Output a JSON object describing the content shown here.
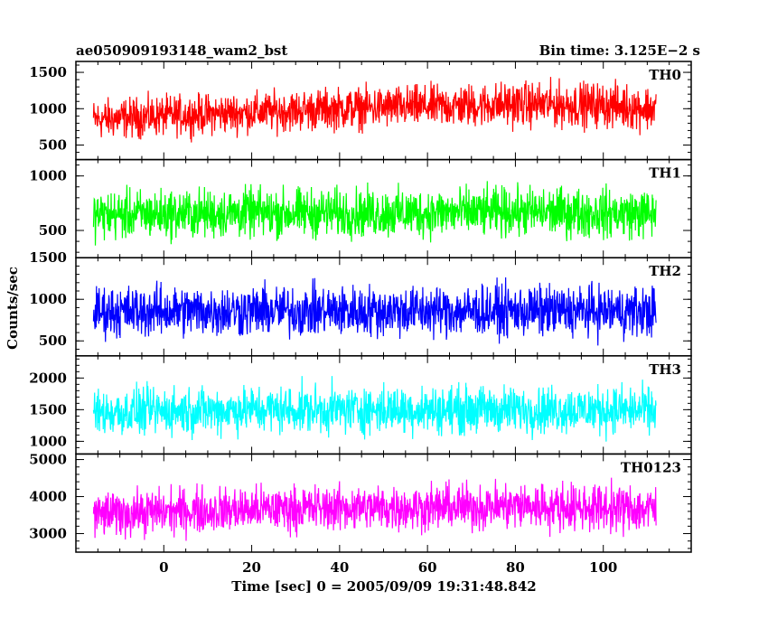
{
  "header": {
    "left_title": "ae050909193148_wam2_bst",
    "right_title": "Bin time: 3.125E−2 s"
  },
  "chart_data": {
    "type": "line",
    "title": "ae050909193148_wam2_bst",
    "subtitle": "Bin time: 3.125E−2 s",
    "xlabel": "Time [sec] 0 = 2005/09/09 19:31:48.842",
    "ylabel": "Counts/sec",
    "xlim": [
      -20,
      120
    ],
    "data_x_range": [
      -16,
      112
    ],
    "bin_time": 0.03125,
    "x_ticks": [
      0,
      20,
      40,
      60,
      80,
      100
    ],
    "x_tick_labels": [
      "0",
      "20",
      "40",
      "60",
      "80",
      "100"
    ],
    "grid": false,
    "panels": [
      {
        "name": "TH0",
        "color": "#ff0000",
        "ylim": [
          300,
          1650
        ],
        "y_ticks": [
          500,
          1000,
          1500
        ],
        "y_tick_labels": [
          "500",
          "1000",
          "1500"
        ],
        "x": [
          -16,
          0,
          20,
          40,
          60,
          80,
          100,
          112
        ],
        "values": [
          850,
          900,
          950,
          1000,
          1030,
          1060,
          1050,
          1000
        ],
        "spread": [
          400,
          400,
          400,
          420,
          420,
          450,
          450,
          450
        ]
      },
      {
        "name": "TH1",
        "color": "#00ff00",
        "ylim": [
          250,
          1150
        ],
        "y_ticks": [
          500,
          1000
        ],
        "y_tick_labels": [
          "500",
          "1000"
        ],
        "x": [
          -16,
          0,
          20,
          40,
          60,
          80,
          100,
          112
        ],
        "values": [
          640,
          650,
          660,
          660,
          660,
          670,
          660,
          650
        ],
        "spread": [
          330,
          330,
          330,
          330,
          330,
          330,
          330,
          330
        ]
      },
      {
        "name": "TH2",
        "color": "#0000ff",
        "ylim": [
          320,
          1500
        ],
        "y_ticks": [
          500,
          1000,
          1500
        ],
        "y_tick_labels": [
          "500",
          "1000",
          "1500"
        ],
        "x": [
          -16,
          0,
          20,
          40,
          60,
          80,
          100,
          112
        ],
        "values": [
          850,
          860,
          860,
          860,
          860,
          860,
          860,
          850
        ],
        "spread": [
          450,
          450,
          450,
          450,
          450,
          450,
          450,
          450
        ]
      },
      {
        "name": "TH3",
        "color": "#00ffff",
        "ylim": [
          800,
          2350
        ],
        "y_ticks": [
          1000,
          1500,
          2000
        ],
        "y_tick_labels": [
          "1000",
          "1500",
          "2000"
        ],
        "x": [
          -16,
          0,
          20,
          40,
          60,
          80,
          100,
          112
        ],
        "values": [
          1450,
          1480,
          1500,
          1500,
          1500,
          1500,
          1500,
          1480
        ],
        "spread": [
          550,
          550,
          550,
          550,
          550,
          550,
          550,
          550
        ]
      },
      {
        "name": "TH0123",
        "color": "#ff00ff",
        "ylim": [
          2500,
          5150
        ],
        "y_ticks": [
          3000,
          4000,
          5000
        ],
        "y_tick_labels": [
          "3000",
          "4000",
          "5000"
        ],
        "x": [
          -16,
          0,
          20,
          40,
          60,
          80,
          100,
          112
        ],
        "values": [
          3500,
          3600,
          3650,
          3700,
          3700,
          3750,
          3700,
          3650
        ],
        "spread": [
          900,
          900,
          900,
          900,
          900,
          950,
          950,
          950
        ]
      }
    ]
  }
}
